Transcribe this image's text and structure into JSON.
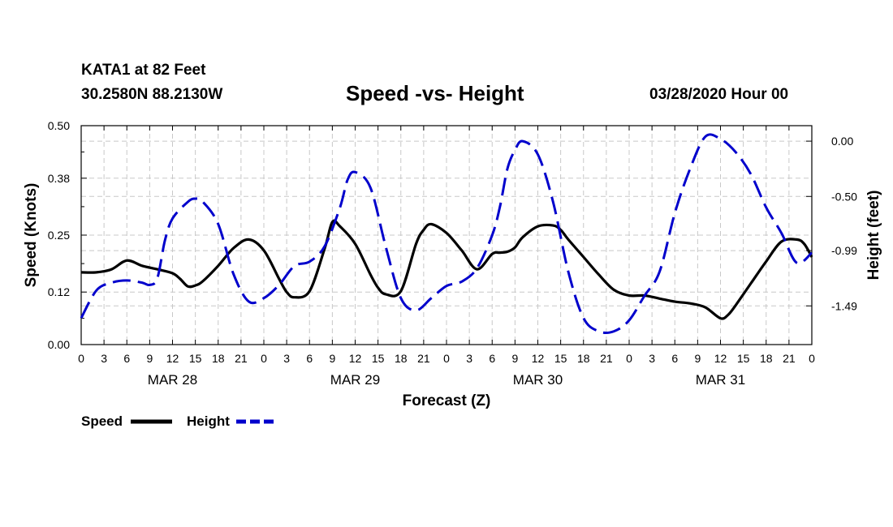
{
  "header": {
    "station": "KATA1 at 82 Feet",
    "coords": "30.2580N 88.2130W",
    "title": "Speed -vs- Height",
    "datetime": "03/28/2020 Hour 00"
  },
  "chart_data": {
    "type": "line",
    "title": "Speed -vs- Height",
    "xlabel": "Forecast (Z)",
    "ylabel_left": "Speed (Knots)",
    "ylabel_right": "Height (feet)",
    "x_range_hours": [
      0,
      96
    ],
    "x_tick_step_hours": 3,
    "x_tick_labels": [
      "0",
      "3",
      "6",
      "9",
      "12",
      "15",
      "18",
      "21",
      "0",
      "3",
      "6",
      "9",
      "12",
      "15",
      "18",
      "21",
      "0",
      "3",
      "6",
      "9",
      "12",
      "15",
      "18",
      "21",
      "0",
      "3",
      "6",
      "9",
      "12",
      "15",
      "18",
      "21",
      "0"
    ],
    "day_labels": [
      {
        "label": "MAR 28",
        "hour": 12
      },
      {
        "label": "MAR 29",
        "hour": 36
      },
      {
        "label": "MAR 30",
        "hour": 60
      },
      {
        "label": "MAR 31",
        "hour": 84
      }
    ],
    "y_left": {
      "min": 0.0,
      "max": 0.5,
      "ticks": [
        0.0,
        0.12,
        0.25,
        0.38,
        0.5
      ],
      "tick_labels": [
        "0.00",
        "0.12",
        "0.25",
        "0.38",
        "0.50"
      ]
    },
    "y_right": {
      "min": -1.84,
      "max": 0.14,
      "ticks": [
        0.0,
        -0.5,
        -0.99,
        -1.49
      ],
      "tick_labels": [
        "0.00",
        "-0.50",
        "-0.99",
        "-1.49"
      ]
    },
    "grid": true,
    "series": [
      {
        "name": "Speed",
        "axis": "left",
        "color": "#000000",
        "dash": "solid",
        "x": [
          0,
          2,
          4,
          6,
          8,
          10,
          12,
          13,
          14,
          15,
          16,
          18,
          20,
          22,
          24,
          26,
          27,
          28,
          30,
          32,
          33,
          34,
          36,
          38,
          39,
          40,
          42,
          44,
          45,
          46,
          48,
          50,
          52,
          54,
          55,
          56,
          57,
          58,
          60,
          62,
          63,
          64,
          66,
          68,
          70,
          72,
          74,
          76,
          78,
          80,
          82,
          84,
          85,
          86,
          88,
          90,
          92,
          94,
          95,
          96
        ],
        "y": [
          0.165,
          0.165,
          0.172,
          0.192,
          0.18,
          0.172,
          0.163,
          0.15,
          0.133,
          0.135,
          0.145,
          0.18,
          0.22,
          0.24,
          0.215,
          0.15,
          0.12,
          0.108,
          0.122,
          0.22,
          0.28,
          0.27,
          0.23,
          0.16,
          0.13,
          0.115,
          0.122,
          0.23,
          0.262,
          0.275,
          0.255,
          0.215,
          0.172,
          0.207,
          0.21,
          0.212,
          0.222,
          0.245,
          0.27,
          0.272,
          0.262,
          0.24,
          0.2,
          0.16,
          0.125,
          0.112,
          0.112,
          0.105,
          0.098,
          0.094,
          0.085,
          0.06,
          0.068,
          0.09,
          0.14,
          0.19,
          0.235,
          0.24,
          0.23,
          0.2
        ]
      },
      {
        "name": "Height",
        "axis": "right",
        "color": "#0000cc",
        "dash": "dashed",
        "x": [
          0,
          2,
          4,
          6,
          8,
          9,
          10,
          11,
          12,
          14,
          15,
          16,
          18,
          20,
          22,
          24,
          26,
          28,
          30,
          32,
          34,
          35,
          36,
          38,
          40,
          42,
          44,
          46,
          48,
          50,
          52,
          54,
          55,
          56,
          57,
          58,
          60,
          62,
          64,
          66,
          68,
          70,
          72,
          74,
          76,
          78,
          80,
          82,
          84,
          86,
          88,
          90,
          92,
          94,
          96
        ],
        "y": [
          -1.6,
          -1.35,
          -1.28,
          -1.26,
          -1.28,
          -1.3,
          -1.24,
          -0.9,
          -0.7,
          -0.55,
          -0.52,
          -0.55,
          -0.75,
          -1.2,
          -1.45,
          -1.42,
          -1.3,
          -1.13,
          -1.09,
          -0.95,
          -0.6,
          -0.35,
          -0.28,
          -0.42,
          -0.95,
          -1.42,
          -1.53,
          -1.42,
          -1.31,
          -1.27,
          -1.15,
          -0.85,
          -0.6,
          -0.25,
          -0.08,
          0.0,
          -0.12,
          -0.55,
          -1.18,
          -1.6,
          -1.72,
          -1.72,
          -1.62,
          -1.4,
          -1.18,
          -0.65,
          -0.25,
          0.04,
          0.02,
          -0.1,
          -0.3,
          -0.6,
          -0.83,
          -1.1,
          -1.01
        ]
      }
    ]
  },
  "legend": {
    "speed_label": "Speed",
    "height_label": "Height"
  }
}
